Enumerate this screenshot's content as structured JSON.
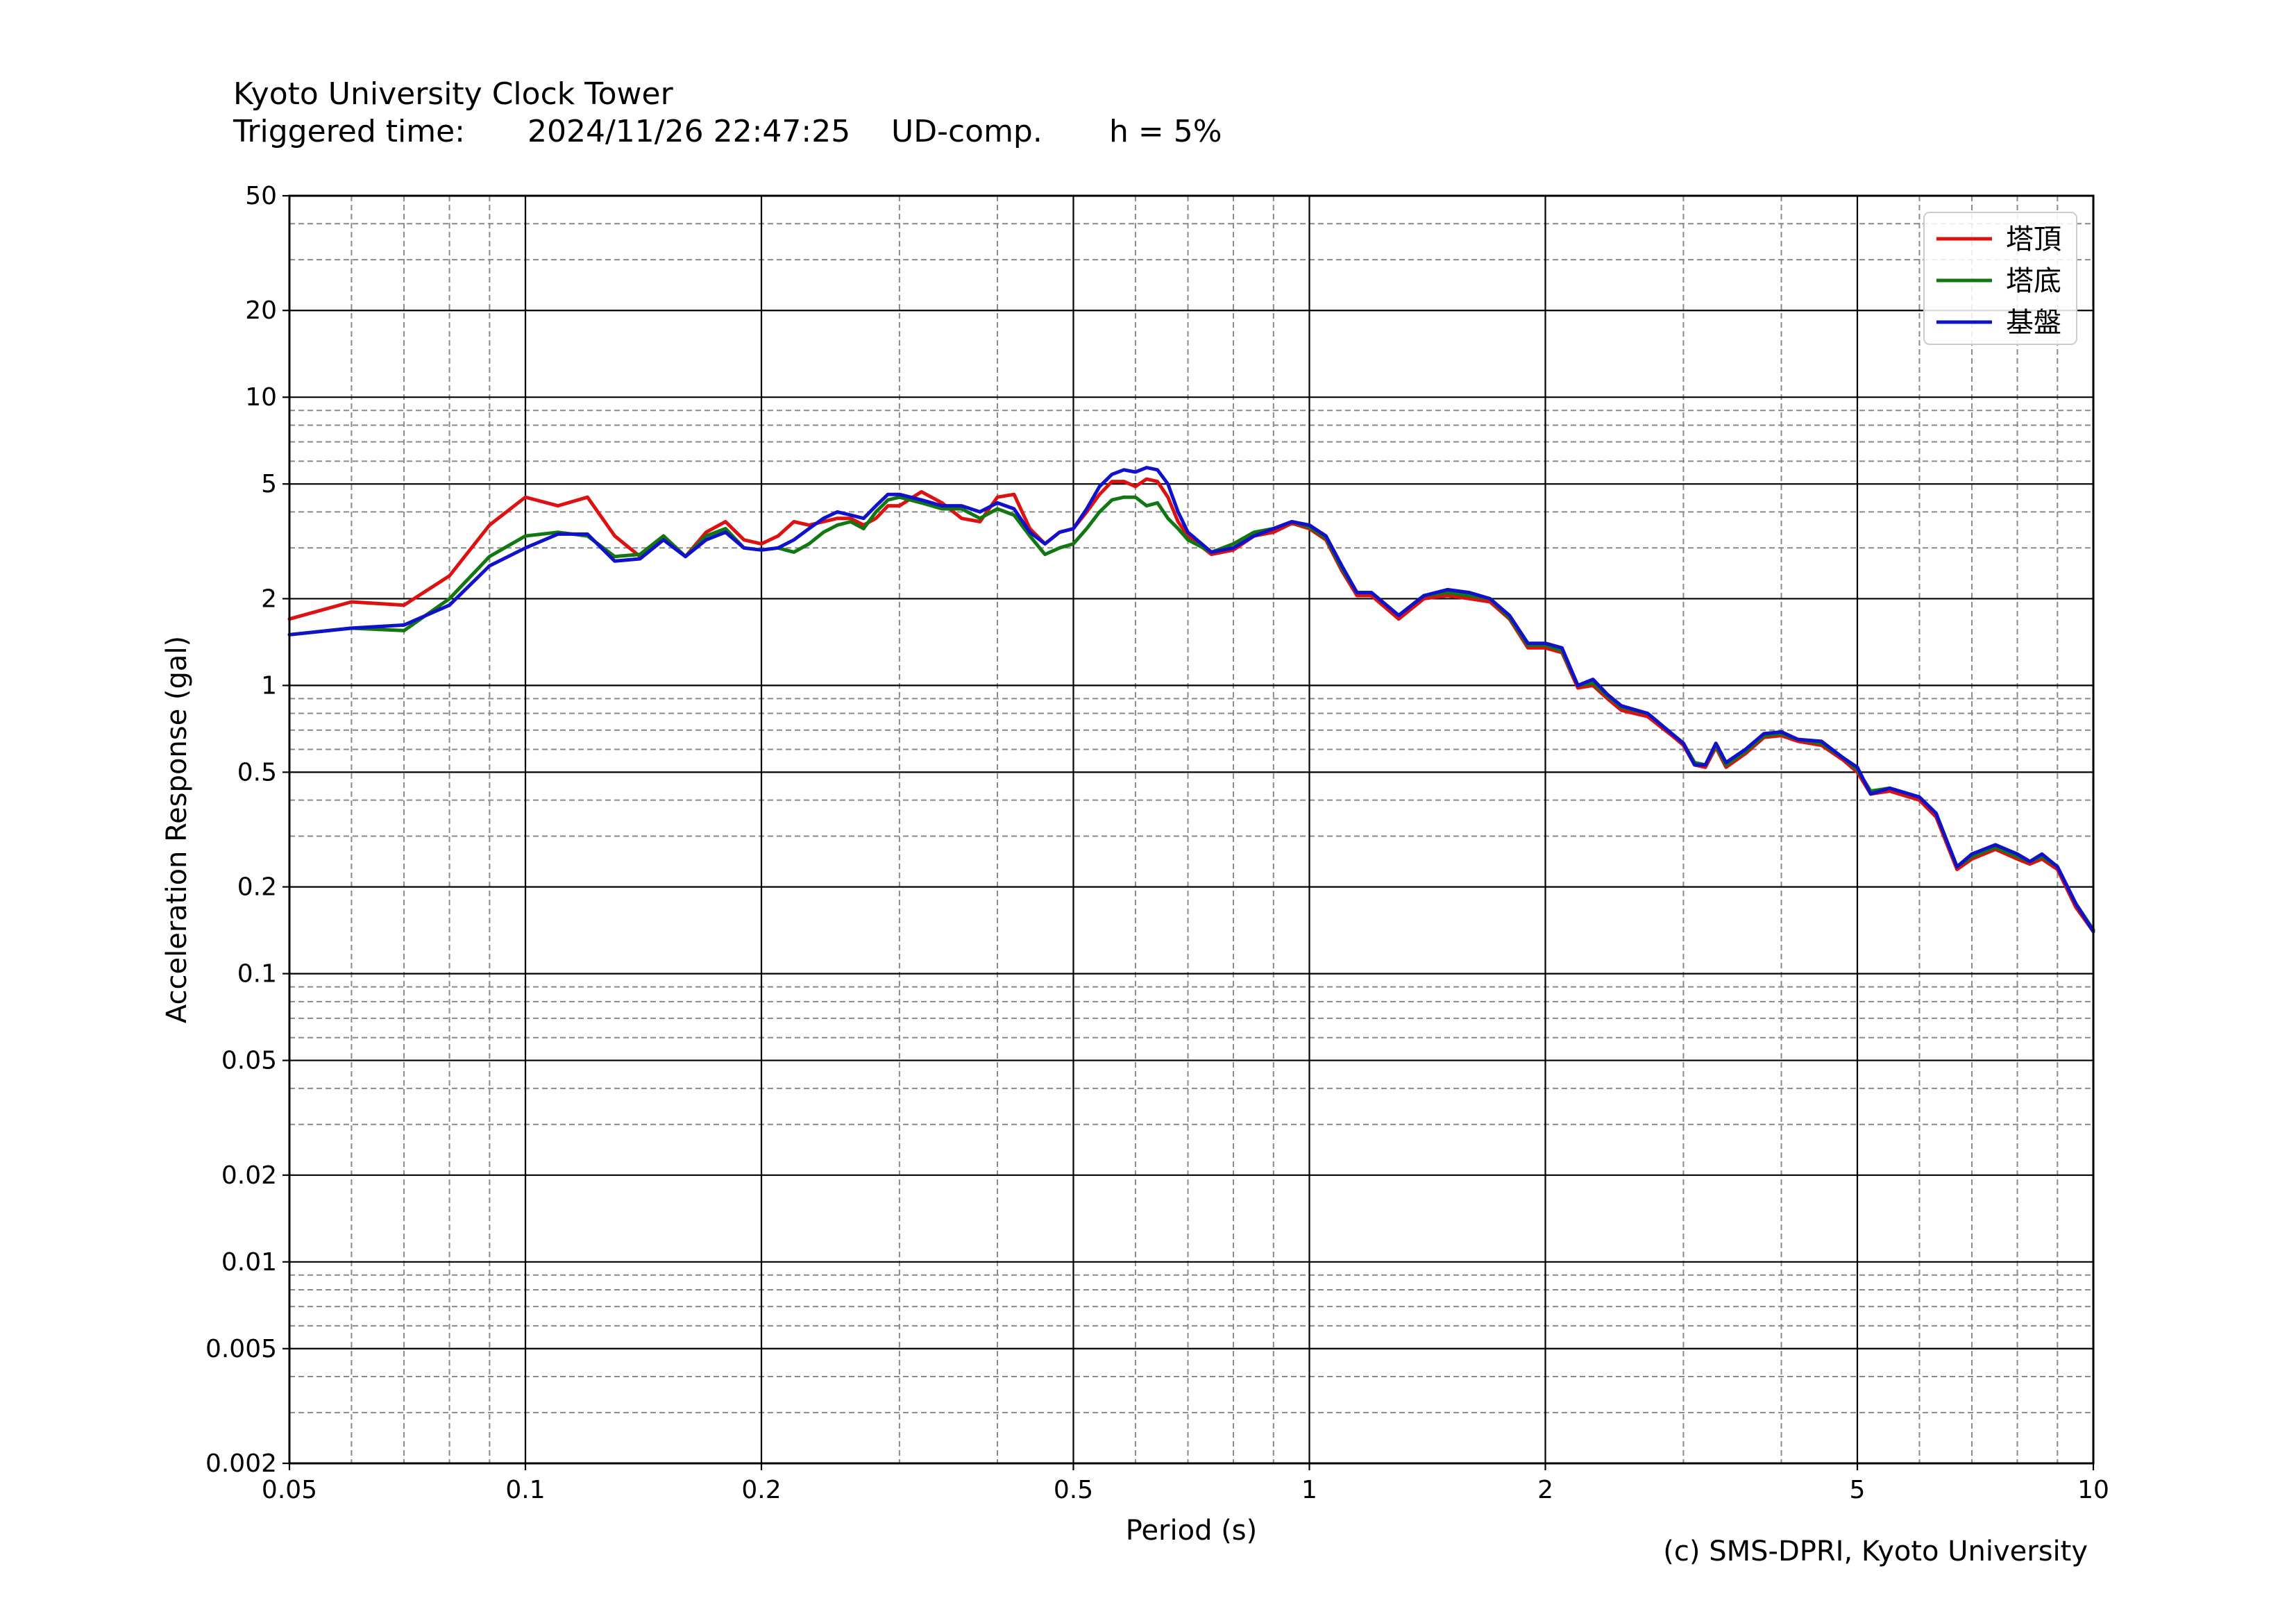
{
  "header": {
    "station": "Kyoto University Clock Tower",
    "triggered_label": "Triggered time:",
    "triggered_value": "2024/11/26 22:47:25",
    "component": "UD-comp.",
    "damping": "h = 5%"
  },
  "credit": "(c) SMS-DPRI, Kyoto University",
  "chart_data": {
    "type": "line",
    "xlabel": "Period (s)",
    "ylabel": "Acceleration Response (gal)",
    "xscale": "log",
    "yscale": "log",
    "xlim": [
      0.05,
      10
    ],
    "ylim": [
      0.002,
      50
    ],
    "xticks": [
      0.05,
      0.1,
      0.2,
      0.5,
      1,
      2,
      5,
      10
    ],
    "xtick_labels": [
      "0.05",
      "0.1",
      "0.2",
      "0.5",
      "1",
      "2",
      "5",
      "10"
    ],
    "yticks": [
      0.002,
      0.005,
      0.01,
      0.02,
      0.05,
      0.1,
      0.2,
      0.5,
      1,
      2,
      5,
      10,
      20,
      50
    ],
    "ytick_labels": [
      "0.002",
      "0.005",
      "0.01",
      "0.02",
      "0.05",
      "0.1",
      "0.2",
      "0.5",
      "1",
      "2",
      "5",
      "10",
      "20",
      "50"
    ],
    "grid": true,
    "legend": "top-right",
    "x": [
      0.05,
      0.06,
      0.07,
      0.08,
      0.09,
      0.1,
      0.11,
      0.12,
      0.13,
      0.14,
      0.15,
      0.16,
      0.17,
      0.18,
      0.19,
      0.2,
      0.21,
      0.22,
      0.23,
      0.24,
      0.25,
      0.26,
      0.27,
      0.28,
      0.29,
      0.3,
      0.32,
      0.34,
      0.36,
      0.38,
      0.4,
      0.42,
      0.44,
      0.46,
      0.48,
      0.5,
      0.52,
      0.54,
      0.56,
      0.58,
      0.6,
      0.62,
      0.64,
      0.66,
      0.68,
      0.7,
      0.75,
      0.8,
      0.85,
      0.9,
      0.95,
      1.0,
      1.05,
      1.1,
      1.15,
      1.2,
      1.3,
      1.4,
      1.5,
      1.6,
      1.7,
      1.8,
      1.9,
      2.0,
      2.1,
      2.2,
      2.3,
      2.4,
      2.5,
      2.7,
      2.9,
      3.0,
      3.1,
      3.2,
      3.3,
      3.4,
      3.6,
      3.8,
      4.0,
      4.2,
      4.5,
      4.8,
      5.0,
      5.2,
      5.5,
      6.0,
      6.3,
      6.7,
      7.0,
      7.5,
      8.0,
      8.3,
      8.6,
      9.0,
      9.5,
      10.0
    ],
    "series": [
      {
        "name": "塔頂",
        "color": "#dd1111",
        "values": [
          1.7,
          1.95,
          1.9,
          2.4,
          3.6,
          4.5,
          4.2,
          4.5,
          3.3,
          2.8,
          3.3,
          2.8,
          3.4,
          3.7,
          3.2,
          3.1,
          3.3,
          3.7,
          3.6,
          3.7,
          3.8,
          3.8,
          3.6,
          3.8,
          4.2,
          4.2,
          4.7,
          4.3,
          3.8,
          3.7,
          4.5,
          4.6,
          3.5,
          3.1,
          3.4,
          3.5,
          4.0,
          4.6,
          5.1,
          5.1,
          4.9,
          5.2,
          5.1,
          4.5,
          3.7,
          3.3,
          2.85,
          2.95,
          3.3,
          3.4,
          3.65,
          3.5,
          3.2,
          2.5,
          2.05,
          2.05,
          1.7,
          2.0,
          2.05,
          2.0,
          1.95,
          1.7,
          1.35,
          1.35,
          1.3,
          0.98,
          1.0,
          0.9,
          0.82,
          0.78,
          0.67,
          0.62,
          0.53,
          0.52,
          0.61,
          0.52,
          0.58,
          0.66,
          0.67,
          0.64,
          0.62,
          0.55,
          0.5,
          0.42,
          0.43,
          0.4,
          0.35,
          0.23,
          0.25,
          0.27,
          0.25,
          0.24,
          0.25,
          0.23,
          0.17,
          0.14
        ]
      },
      {
        "name": "塔底",
        "color": "#117711",
        "values": [
          1.5,
          1.58,
          1.55,
          2.0,
          2.8,
          3.3,
          3.4,
          3.3,
          2.8,
          2.85,
          3.3,
          2.8,
          3.3,
          3.5,
          3.0,
          2.95,
          3.0,
          2.9,
          3.1,
          3.4,
          3.6,
          3.7,
          3.5,
          4.0,
          4.4,
          4.5,
          4.3,
          4.1,
          4.1,
          3.8,
          4.1,
          3.9,
          3.3,
          2.85,
          3.0,
          3.1,
          3.5,
          4.0,
          4.4,
          4.5,
          4.5,
          4.2,
          4.3,
          3.8,
          3.5,
          3.2,
          2.9,
          3.1,
          3.4,
          3.5,
          3.7,
          3.55,
          3.25,
          2.55,
          2.1,
          2.1,
          1.75,
          2.05,
          2.1,
          2.05,
          2.0,
          1.72,
          1.38,
          1.38,
          1.32,
          1.0,
          1.02,
          0.92,
          0.84,
          0.8,
          0.68,
          0.63,
          0.54,
          0.53,
          0.62,
          0.53,
          0.59,
          0.67,
          0.68,
          0.65,
          0.63,
          0.56,
          0.51,
          0.43,
          0.44,
          0.41,
          0.36,
          0.235,
          0.255,
          0.275,
          0.255,
          0.245,
          0.255,
          0.235,
          0.175,
          0.142
        ]
      },
      {
        "name": "基盤",
        "color": "#1111cc",
        "values": [
          1.5,
          1.58,
          1.62,
          1.9,
          2.6,
          3.0,
          3.35,
          3.35,
          2.7,
          2.75,
          3.2,
          2.8,
          3.2,
          3.4,
          3.0,
          2.95,
          3.0,
          3.2,
          3.5,
          3.8,
          4.0,
          3.9,
          3.8,
          4.2,
          4.6,
          4.6,
          4.4,
          4.2,
          4.2,
          4.0,
          4.3,
          4.1,
          3.4,
          3.1,
          3.4,
          3.5,
          4.1,
          4.9,
          5.4,
          5.6,
          5.5,
          5.7,
          5.6,
          5.0,
          4.0,
          3.4,
          2.9,
          3.0,
          3.3,
          3.5,
          3.7,
          3.6,
          3.3,
          2.6,
          2.1,
          2.1,
          1.75,
          2.05,
          2.15,
          2.1,
          2.0,
          1.75,
          1.4,
          1.4,
          1.35,
          1.0,
          1.05,
          0.93,
          0.85,
          0.8,
          0.68,
          0.63,
          0.53,
          0.53,
          0.63,
          0.54,
          0.6,
          0.68,
          0.69,
          0.65,
          0.64,
          0.56,
          0.52,
          0.42,
          0.44,
          0.41,
          0.36,
          0.235,
          0.26,
          0.28,
          0.26,
          0.245,
          0.26,
          0.235,
          0.175,
          0.14
        ]
      }
    ]
  }
}
